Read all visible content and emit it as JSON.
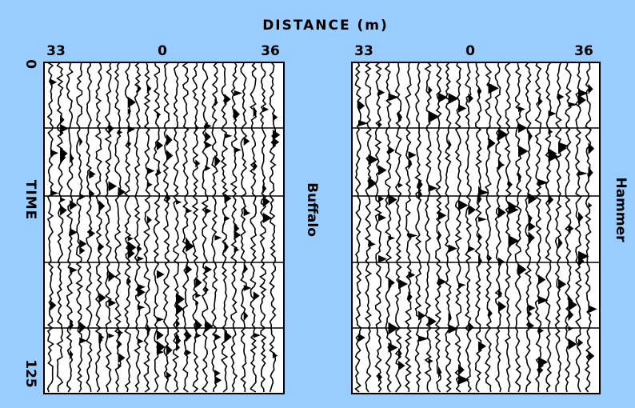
{
  "title": "DISTANCE (m)",
  "y_axis": {
    "label": "TIME",
    "ticks": [
      "0",
      "125"
    ]
  },
  "panels": [
    {
      "name": "Buffalo",
      "x_ticks": [
        "33",
        "0",
        "36"
      ]
    },
    {
      "name": "Hammer",
      "x_ticks": [
        "33",
        "0",
        "36"
      ]
    }
  ]
}
